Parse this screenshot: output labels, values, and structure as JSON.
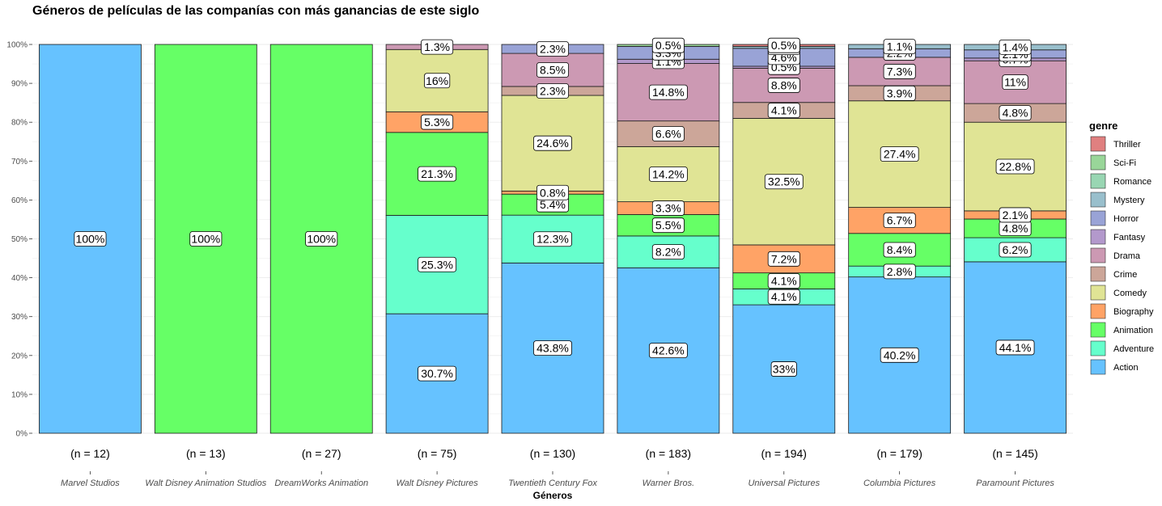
{
  "chart_data": {
    "type": "bar",
    "stacked": "percent",
    "title": "Géneros de películas de las companías con más ganancias de este siglo",
    "xlabel": "Géneros",
    "ylabel": "",
    "ylim": [
      0,
      100
    ],
    "y_ticks": [
      "0%",
      "10%",
      "20%",
      "30%",
      "40%",
      "50%",
      "60%",
      "70%",
      "80%",
      "90%",
      "100%"
    ],
    "grid": true,
    "legend": {
      "title": "genre",
      "placement": "right"
    },
    "genres": [
      "Action",
      "Adventure",
      "Animation",
      "Biography",
      "Comedy",
      "Crime",
      "Drama",
      "Fantasy",
      "Horror",
      "Mystery",
      "Romance",
      "Sci-Fi",
      "Thriller"
    ],
    "colors": {
      "Action": "#66c2ff",
      "Adventure": "#66ffcc",
      "Animation": "#66ff66",
      "Biography": "#ffa366",
      "Comedy": "#e0e495",
      "Crime": "#cca699",
      "Drama": "#cc99b3",
      "Fantasy": "#b399cc",
      "Horror": "#99a3d6",
      "Mystery": "#99bfcc",
      "Romance": "#99d6b3",
      "Sci-Fi": "#99d699",
      "Thriller": "#e08080"
    },
    "categories": [
      "Marvel Studios",
      "Walt Disney Animation Studios",
      "DreamWorks Animation",
      "Walt Disney Pictures",
      "Twentieth Century Fox",
      "Warner Bros.",
      "Universal Pictures",
      "Columbia Pictures",
      "Paramount Pictures"
    ],
    "n_labels": [
      "(n = 12)",
      "(n = 13)",
      "(n = 27)",
      "(n = 75)",
      "(n = 130)",
      "(n = 183)",
      "(n = 194)",
      "(n = 179)",
      "(n = 145)"
    ],
    "bars": [
      {
        "category": "Marvel Studios",
        "segments": [
          {
            "genre": "Action",
            "value": 100,
            "label": "100%"
          }
        ]
      },
      {
        "category": "Walt Disney Animation Studios",
        "segments": [
          {
            "genre": "Animation",
            "value": 100,
            "label": "100%"
          }
        ]
      },
      {
        "category": "DreamWorks Animation",
        "segments": [
          {
            "genre": "Animation",
            "value": 100,
            "label": "100%"
          }
        ]
      },
      {
        "category": "Walt Disney Pictures",
        "segments": [
          {
            "genre": "Action",
            "value": 30.7,
            "label": "30.7%"
          },
          {
            "genre": "Adventure",
            "value": 25.3,
            "label": "25.3%"
          },
          {
            "genre": "Animation",
            "value": 21.3,
            "label": "21.3%"
          },
          {
            "genre": "Biography",
            "value": 5.3,
            "label": "5.3%"
          },
          {
            "genre": "Comedy",
            "value": 16,
            "label": "16%"
          },
          {
            "genre": "Drama",
            "value": 1.3,
            "label": "1.3%"
          }
        ]
      },
      {
        "category": "Twentieth Century Fox",
        "segments": [
          {
            "genre": "Action",
            "value": 43.8,
            "label": "43.8%"
          },
          {
            "genre": "Adventure",
            "value": 12.3,
            "label": "12.3%"
          },
          {
            "genre": "Animation",
            "value": 5.4,
            "label": "5.4%"
          },
          {
            "genre": "Biography",
            "value": 0.8,
            "label": "0.8%"
          },
          {
            "genre": "Comedy",
            "value": 24.6,
            "label": "24.6%"
          },
          {
            "genre": "Crime",
            "value": 2.3,
            "label": "2.3%"
          },
          {
            "genre": "Drama",
            "value": 8.5,
            "label": "8.5%"
          },
          {
            "genre": "Horror",
            "value": 2.3,
            "label": "2.3%"
          }
        ]
      },
      {
        "category": "Warner Bros.",
        "segments": [
          {
            "genre": "Action",
            "value": 42.6,
            "label": "42.6%"
          },
          {
            "genre": "Adventure",
            "value": 8.2,
            "label": "8.2%"
          },
          {
            "genre": "Animation",
            "value": 5.5,
            "label": "5.5%"
          },
          {
            "genre": "Biography",
            "value": 3.3,
            "label": "3.3%"
          },
          {
            "genre": "Comedy",
            "value": 14.2,
            "label": "14.2%"
          },
          {
            "genre": "Crime",
            "value": 6.6,
            "label": "6.6%"
          },
          {
            "genre": "Drama",
            "value": 14.8,
            "label": "14.8%"
          },
          {
            "genre": "Fantasy",
            "value": 1.1,
            "label": "1.1%"
          },
          {
            "genre": "Horror",
            "value": 3.3,
            "label": "3.3%"
          },
          {
            "genre": "Sci-Fi",
            "value": 0.5,
            "label": "0.5%"
          }
        ]
      },
      {
        "category": "Universal Pictures",
        "segments": [
          {
            "genre": "Action",
            "value": 33,
            "label": "33%"
          },
          {
            "genre": "Adventure",
            "value": 4.1,
            "label": "4.1%"
          },
          {
            "genre": "Animation",
            "value": 4.1,
            "label": "4.1%"
          },
          {
            "genre": "Biography",
            "value": 7.2,
            "label": "7.2%"
          },
          {
            "genre": "Comedy",
            "value": 32.5,
            "label": "32.5%"
          },
          {
            "genre": "Crime",
            "value": 4.1,
            "label": "4.1%"
          },
          {
            "genre": "Drama",
            "value": 8.8,
            "label": "8.8%"
          },
          {
            "genre": "Fantasy",
            "value": 0.5,
            "label": "0.5%"
          },
          {
            "genre": "Horror",
            "value": 4.6,
            "label": "4.6%"
          },
          {
            "genre": "Mystery",
            "value": 0.5,
            "label": "0.5%"
          },
          {
            "genre": "Thriller",
            "value": 0.5,
            "label": "0.5%"
          }
        ]
      },
      {
        "category": "Columbia Pictures",
        "segments": [
          {
            "genre": "Action",
            "value": 40.2,
            "label": "40.2%"
          },
          {
            "genre": "Adventure",
            "value": 2.8,
            "label": "2.8%"
          },
          {
            "genre": "Animation",
            "value": 8.4,
            "label": "8.4%"
          },
          {
            "genre": "Biography",
            "value": 6.7,
            "label": "6.7%"
          },
          {
            "genre": "Comedy",
            "value": 27.4,
            "label": "27.4%"
          },
          {
            "genre": "Crime",
            "value": 3.9,
            "label": "3.9%"
          },
          {
            "genre": "Drama",
            "value": 7.3,
            "label": "7.3%"
          },
          {
            "genre": "Horror",
            "value": 2.2,
            "label": "2.2%"
          },
          {
            "genre": "Mystery",
            "value": 1.1,
            "label": "1.1%"
          }
        ]
      },
      {
        "category": "Paramount Pictures",
        "segments": [
          {
            "genre": "Action",
            "value": 44.1,
            "label": "44.1%"
          },
          {
            "genre": "Adventure",
            "value": 6.2,
            "label": "6.2%"
          },
          {
            "genre": "Animation",
            "value": 4.8,
            "label": "4.8%"
          },
          {
            "genre": "Biography",
            "value": 2.1,
            "label": "2.1%"
          },
          {
            "genre": "Comedy",
            "value": 22.8,
            "label": "22.8%"
          },
          {
            "genre": "Crime",
            "value": 4.8,
            "label": "4.8%"
          },
          {
            "genre": "Drama",
            "value": 11,
            "label": "11%"
          },
          {
            "genre": "Fantasy",
            "value": 0.7,
            "label": "0.7%"
          },
          {
            "genre": "Horror",
            "value": 2.1,
            "label": "2.1%"
          },
          {
            "genre": "Mystery",
            "value": 1.4,
            "label": "1.4%"
          }
        ]
      }
    ]
  }
}
